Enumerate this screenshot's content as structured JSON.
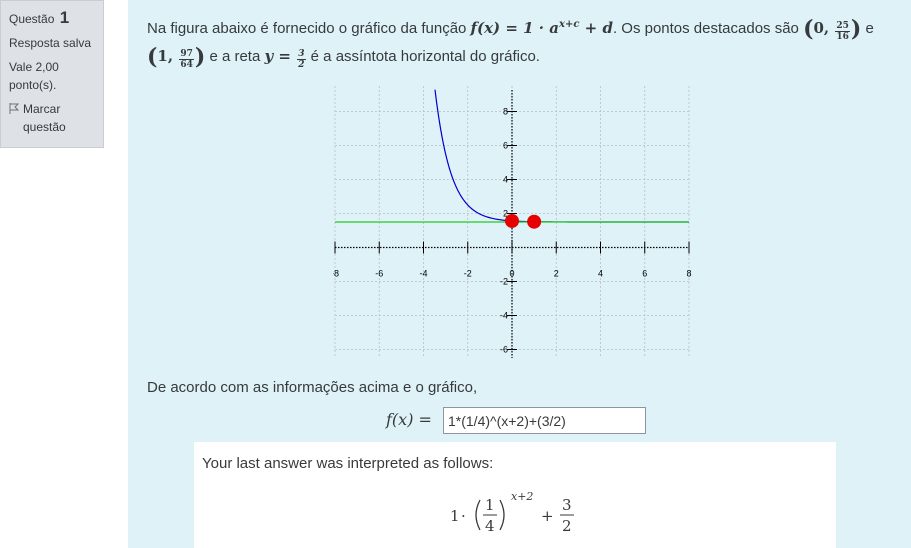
{
  "info": {
    "question_label": "Questão",
    "question_number": "1",
    "status": "Resposta salva",
    "points_line1": "Vale 2,00",
    "points_line2": "ponto(s).",
    "flag_label": "Marcar questão"
  },
  "question": {
    "intro": "Na figura abaixo é fornecido o gráfico da função",
    "function_expr": "f(x) = 1 · a",
    "exponent": "x+c",
    "plus_d": "+ d",
    "points_text": ". Os pontos destacados são",
    "point1_x": "0",
    "point1_num": "25",
    "point1_den": "16",
    "conj": "e",
    "point2_x": "1",
    "point2_num": "97",
    "point2_den": "64",
    "line_text": "e a reta",
    "asymptote_lhs": "y =",
    "asymptote_num": "3",
    "asymptote_den": "2",
    "asymptote_text": "é a assíntota horizontal do gráfico."
  },
  "chart_data": {
    "type": "line",
    "title": "",
    "xlabel": "",
    "ylabel": "",
    "xlim": [
      -8,
      8
    ],
    "ylim": [
      -6.5,
      9.5
    ],
    "x_ticks": [
      -8,
      -6,
      -4,
      -2,
      0,
      2,
      4,
      6,
      8
    ],
    "y_ticks": [
      -6,
      -4,
      -2,
      2,
      4,
      6,
      8
    ],
    "grid": true,
    "series": [
      {
        "type": "curve",
        "expression": "1*(1/4)^(x+2)+3/2",
        "color": "#0000cc"
      },
      {
        "type": "horizontal_line",
        "y": 1.5,
        "color": "#22cc22"
      }
    ],
    "highlighted_points": [
      {
        "x": 0,
        "y": 1.5625,
        "color": "#e60000"
      },
      {
        "x": 1,
        "y": 1.515625,
        "color": "#e60000"
      }
    ]
  },
  "prompt": "De acordo com as informações acima e o gráfico,",
  "answer_label": "f(x) =",
  "answer_value": "1*(1/4)^(x+2)+(3/2)",
  "interpretation": {
    "text": "Your last answer was interpreted as follows:",
    "coef": "1",
    "base_num": "1",
    "base_den": "4",
    "exponent": "x+2",
    "const_num": "3",
    "const_den": "2"
  }
}
